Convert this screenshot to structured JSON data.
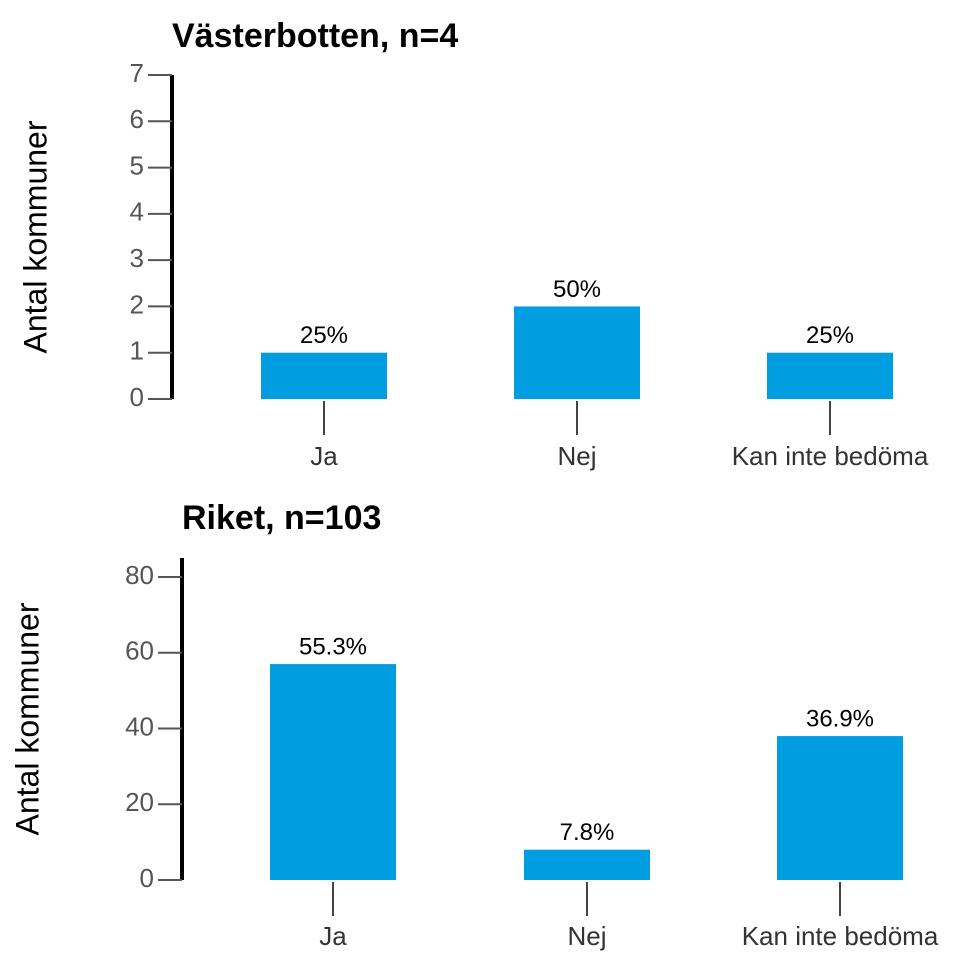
{
  "chart_data": [
    {
      "type": "bar",
      "title": "Västerbotten, n=4",
      "ylabel": "Antal kommuner",
      "categories": [
        "Ja",
        "Nej",
        "Kan inte bedöma"
      ],
      "values": [
        1,
        2,
        1
      ],
      "value_labels": [
        "25%",
        "50%",
        "25%"
      ],
      "color": "#009ee0",
      "ylim": [
        0,
        7
      ],
      "yticks": [
        0,
        1,
        2,
        3,
        4,
        5,
        6,
        7
      ]
    },
    {
      "type": "bar",
      "title": "Riket, n=103",
      "ylabel": "Antal kommuner",
      "categories": [
        "Ja",
        "Nej",
        "Kan inte bedöma"
      ],
      "values": [
        57,
        8,
        38
      ],
      "value_labels": [
        "55.3%",
        "7.8%",
        "36.9%"
      ],
      "color": "#009ee0",
      "ylim": [
        0,
        85
      ],
      "yticks": [
        0,
        20,
        40,
        60,
        80
      ]
    }
  ]
}
